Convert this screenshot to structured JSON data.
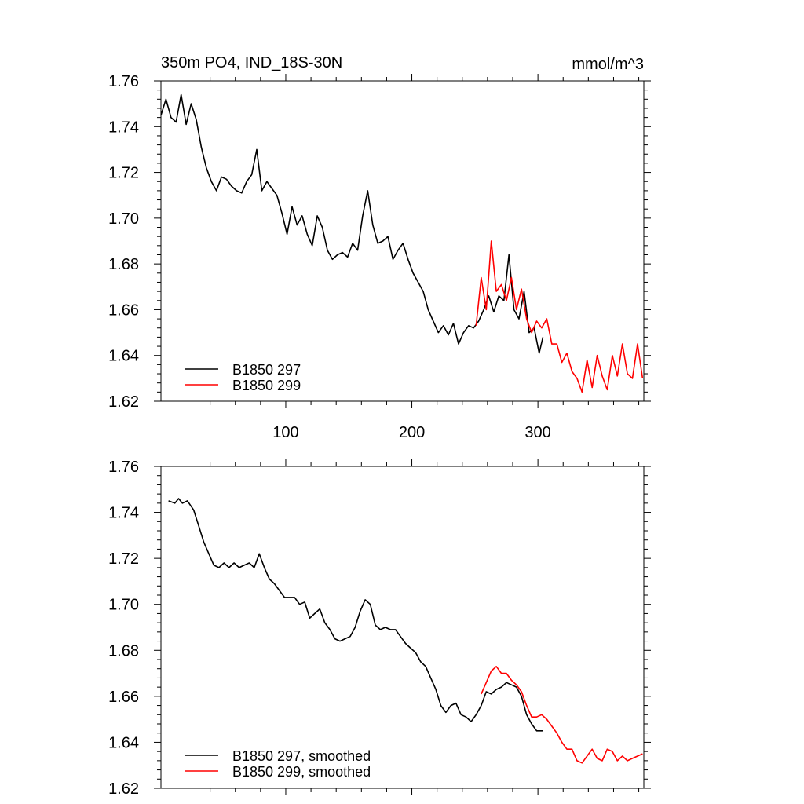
{
  "chart_data": [
    {
      "type": "line",
      "title": "350m PO4, IND_18S-30N",
      "units": "mmol/m^3",
      "xlim": [
        1,
        384
      ],
      "ylim": [
        1.62,
        1.76
      ],
      "xticks": [
        100,
        200,
        300
      ],
      "xtick_labels": [
        "100",
        "200",
        "300"
      ],
      "yticks": [
        1.62,
        1.64,
        1.66,
        1.68,
        1.7,
        1.72,
        1.74,
        1.76
      ],
      "ytick_labels": [
        "1.62",
        "1.64",
        "1.66",
        "1.68",
        "1.70",
        "1.72",
        "1.74",
        "1.76"
      ],
      "legend_position": "bottom-left",
      "series": [
        {
          "name": "B1850 297",
          "color": "#000000",
          "x": [
            1,
            5,
            9,
            13,
            17,
            21,
            25,
            29,
            33,
            37,
            41,
            45,
            49,
            53,
            57,
            61,
            65,
            69,
            73,
            77,
            81,
            85,
            89,
            93,
            97,
            101,
            105,
            109,
            113,
            117,
            121,
            125,
            129,
            133,
            137,
            141,
            145,
            149,
            153,
            157,
            161,
            165,
            169,
            173,
            177,
            181,
            185,
            189,
            193,
            197,
            201,
            205,
            209,
            213,
            217,
            221,
            225,
            229,
            233,
            237,
            241,
            245,
            249,
            253,
            257,
            261,
            265,
            269,
            273,
            277,
            281,
            285,
            289,
            293,
            297,
            301,
            304
          ],
          "values": [
            1.745,
            1.752,
            1.744,
            1.742,
            1.754,
            1.741,
            1.75,
            1.743,
            1.731,
            1.722,
            1.716,
            1.712,
            1.718,
            1.717,
            1.714,
            1.712,
            1.711,
            1.716,
            1.719,
            1.73,
            1.712,
            1.716,
            1.713,
            1.71,
            1.702,
            1.693,
            1.705,
            1.697,
            1.701,
            1.693,
            1.688,
            1.701,
            1.696,
            1.686,
            1.682,
            1.684,
            1.685,
            1.683,
            1.689,
            1.686,
            1.701,
            1.712,
            1.697,
            1.689,
            1.69,
            1.692,
            1.682,
            1.686,
            1.689,
            1.682,
            1.676,
            1.672,
            1.668,
            1.66,
            1.655,
            1.65,
            1.653,
            1.649,
            1.654,
            1.645,
            1.65,
            1.653,
            1.652,
            1.655,
            1.66,
            1.666,
            1.659,
            1.666,
            1.664,
            1.684,
            1.66,
            1.656,
            1.668,
            1.65,
            1.652,
            1.641,
            1.648
          ]
        },
        {
          "name": "B1850 299",
          "color": "#ff0000",
          "x": [
            251,
            255,
            259,
            263,
            267,
            271,
            275,
            279,
            283,
            287,
            291,
            295,
            299,
            303,
            307,
            311,
            315,
            319,
            323,
            327,
            331,
            335,
            339,
            343,
            347,
            351,
            355,
            359,
            363,
            367,
            371,
            375,
            379,
            383
          ],
          "values": [
            1.653,
            1.674,
            1.66,
            1.69,
            1.668,
            1.671,
            1.664,
            1.674,
            1.66,
            1.669,
            1.656,
            1.65,
            1.655,
            1.652,
            1.656,
            1.645,
            1.645,
            1.637,
            1.641,
            1.633,
            1.63,
            1.624,
            1.638,
            1.626,
            1.64,
            1.631,
            1.625,
            1.64,
            1.631,
            1.645,
            1.632,
            1.63,
            1.645,
            1.63
          ]
        }
      ]
    },
    {
      "type": "line",
      "title": "",
      "units": "",
      "xlim": [
        1,
        384
      ],
      "ylim": [
        1.62,
        1.76
      ],
      "xticks": [
        100,
        200,
        300
      ],
      "xtick_labels": [],
      "yticks": [
        1.62,
        1.64,
        1.66,
        1.68,
        1.7,
        1.72,
        1.74,
        1.76
      ],
      "ytick_labels": [
        "1.62",
        "1.64",
        "1.66",
        "1.68",
        "1.70",
        "1.72",
        "1.74",
        "1.76"
      ],
      "legend_position": "bottom-left",
      "series": [
        {
          "name": "B1850 297, smoothed",
          "color": "#000000",
          "x": [
            7,
            12,
            15,
            18,
            22,
            27,
            31,
            35,
            39,
            43,
            47,
            51,
            55,
            59,
            63,
            67,
            71,
            75,
            79,
            83,
            87,
            91,
            95,
            99,
            103,
            107,
            111,
            115,
            119,
            123,
            127,
            131,
            135,
            139,
            143,
            147,
            151,
            155,
            159,
            163,
            167,
            171,
            175,
            179,
            183,
            187,
            191,
            195,
            199,
            203,
            207,
            211,
            215,
            219,
            223,
            227,
            231,
            235,
            239,
            243,
            247,
            251,
            255,
            259,
            263,
            267,
            271,
            275,
            279,
            283,
            287,
            291,
            295,
            299,
            304
          ],
          "values": [
            1.745,
            1.744,
            1.746,
            1.744,
            1.745,
            1.741,
            1.734,
            1.727,
            1.722,
            1.717,
            1.716,
            1.718,
            1.716,
            1.718,
            1.716,
            1.717,
            1.718,
            1.716,
            1.722,
            1.716,
            1.711,
            1.709,
            1.706,
            1.703,
            1.703,
            1.703,
            1.7,
            1.701,
            1.694,
            1.696,
            1.698,
            1.692,
            1.689,
            1.685,
            1.684,
            1.685,
            1.686,
            1.69,
            1.697,
            1.702,
            1.7,
            1.691,
            1.689,
            1.69,
            1.689,
            1.689,
            1.686,
            1.683,
            1.681,
            1.679,
            1.675,
            1.673,
            1.668,
            1.663,
            1.656,
            1.653,
            1.656,
            1.657,
            1.652,
            1.651,
            1.649,
            1.652,
            1.656,
            1.662,
            1.661,
            1.663,
            1.664,
            1.666,
            1.665,
            1.664,
            1.66,
            1.652,
            1.648,
            1.645,
            1.645
          ]
        },
        {
          "name": "B1850 299, smoothed",
          "color": "#ff0000",
          "x": [
            255,
            259,
            263,
            267,
            271,
            275,
            279,
            283,
            287,
            291,
            295,
            299,
            303,
            307,
            311,
            315,
            319,
            323,
            327,
            331,
            335,
            339,
            343,
            347,
            351,
            355,
            359,
            363,
            367,
            371,
            375,
            379,
            383
          ],
          "values": [
            1.661,
            1.666,
            1.671,
            1.673,
            1.67,
            1.67,
            1.667,
            1.665,
            1.662,
            1.656,
            1.651,
            1.651,
            1.652,
            1.65,
            1.647,
            1.644,
            1.64,
            1.637,
            1.637,
            1.632,
            1.631,
            1.634,
            1.637,
            1.633,
            1.632,
            1.637,
            1.636,
            1.632,
            1.634,
            1.632,
            1.633,
            1.634,
            1.635
          ]
        }
      ]
    }
  ]
}
